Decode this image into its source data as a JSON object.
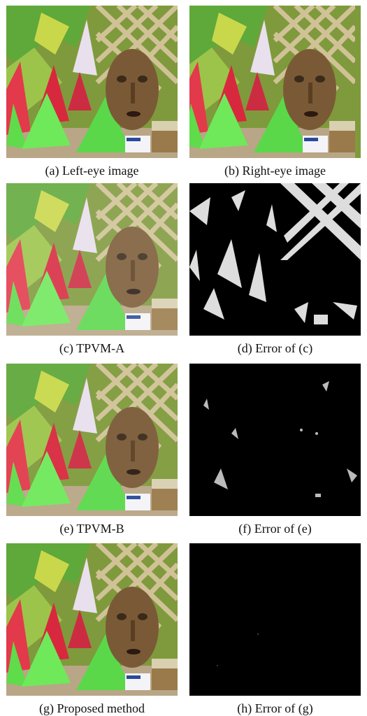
{
  "panels": [
    {
      "caption": "(a) Left-eye image"
    },
    {
      "caption": "(b) Right-eye image"
    },
    {
      "caption": "(c) TPVM-A"
    },
    {
      "caption": "(d) Error of (c)"
    },
    {
      "caption": "(e) TPVM-B"
    },
    {
      "caption": "(f) Error of (e)"
    },
    {
      "caption": "(g) Proposed method"
    },
    {
      "caption": "(h) Error of (g)"
    }
  ]
}
